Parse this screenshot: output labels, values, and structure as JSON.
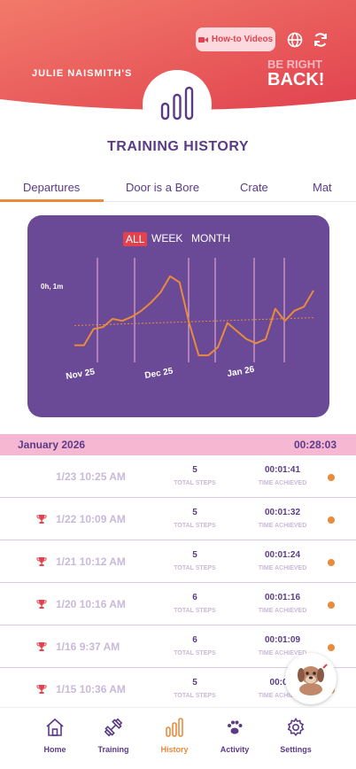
{
  "header": {
    "how_to_videos_label": "How-to Videos",
    "owner_label": "JULIE NAISMITH'S",
    "logo_line1": "BE RIGHT",
    "logo_line2": "BACK!",
    "globe_icon": "globe-icon",
    "refresh_icon": "refresh-icon"
  },
  "page": {
    "title": "TRAINING HISTORY"
  },
  "tabs": [
    {
      "label": "Departures"
    },
    {
      "label": "Door is a Bore"
    },
    {
      "label": "Crate"
    },
    {
      "label": "Mat"
    }
  ],
  "chart": {
    "ranges": [
      {
        "label": "ALL"
      },
      {
        "label": "WEEK"
      },
      {
        "label": "MONTH"
      }
    ]
  },
  "chart_data": {
    "type": "line",
    "y_tick_label": "0h, 1m",
    "x_tick_labels": [
      "Nov 25",
      "Dec 25",
      "Jan 26"
    ],
    "series": [
      {
        "values": [
          0.93,
          0.93,
          1.01,
          1.02,
          1.06,
          1.05,
          1.07,
          1.1,
          1.14,
          1.19,
          1.27,
          1.24,
          1.04,
          0.88,
          0.88,
          0.92,
          1.04,
          1.0,
          0.96,
          0.94,
          0.96,
          1.11,
          1.05,
          1.1,
          1.12,
          1.2
        ]
      }
    ],
    "trendline": true,
    "colors": {
      "line": "#e98a3d",
      "trend": "#e98a3d",
      "background": "#6a4a96"
    }
  },
  "history": {
    "month_label": "January 2026",
    "month_total": "00:28:03",
    "steps_caption": "TOTAL STEPS",
    "time_caption": "TIME ACHIEVED",
    "rows": [
      {
        "date": "1/23 10:25 AM",
        "steps": "5",
        "time": "00:01:41",
        "trophy": false
      },
      {
        "date": "1/22 10:09 AM",
        "steps": "5",
        "time": "00:01:32",
        "trophy": true
      },
      {
        "date": "1/21 10:12 AM",
        "steps": "5",
        "time": "00:01:24",
        "trophy": true
      },
      {
        "date": "1/20 10:16 AM",
        "steps": "6",
        "time": "00:01:16",
        "trophy": true
      },
      {
        "date": "1/16 9:37 AM",
        "steps": "6",
        "time": "00:01:09",
        "trophy": true
      },
      {
        "date": "1/15 10:36 AM",
        "steps": "5",
        "time": "00:01:",
        "trophy": true
      }
    ]
  },
  "nav": {
    "items": [
      {
        "label": "Home"
      },
      {
        "label": "Training"
      },
      {
        "label": "History"
      },
      {
        "label": "Activity"
      },
      {
        "label": "Settings"
      }
    ]
  },
  "colors": {
    "header_red": "#e1424f",
    "purple": "#5b3b87",
    "orange": "#e98a3d",
    "pink": "#f6b7d3"
  }
}
